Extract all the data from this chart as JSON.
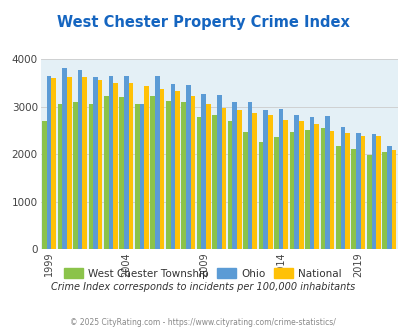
{
  "title": "West Chester Property Crime Index",
  "title_color": "#1565C0",
  "subtitle": "Crime Index corresponds to incidents per 100,000 inhabitants",
  "subtitle_color": "#333333",
  "footer": "© 2025 CityRating.com - https://www.cityrating.com/crime-statistics/",
  "footer_color": "#888888",
  "years": [
    1999,
    2000,
    2001,
    2002,
    2003,
    2004,
    2005,
    2006,
    2007,
    2008,
    2009,
    2010,
    2011,
    2012,
    2013,
    2014,
    2015,
    2016,
    2017,
    2018,
    2019,
    2020,
    2021
  ],
  "west_chester": [
    2700,
    3050,
    3100,
    3070,
    3220,
    3200,
    3050,
    3230,
    3130,
    3100,
    2780,
    2820,
    2700,
    2460,
    2250,
    2360,
    2460,
    2520,
    2560,
    2180,
    2110,
    1990,
    2050
  ],
  "ohio": [
    3650,
    3820,
    3770,
    3630,
    3640,
    3640,
    3060,
    3660,
    3480,
    3470,
    3280,
    3260,
    3110,
    3110,
    2940,
    2960,
    2820,
    2780,
    2800,
    2580,
    2450,
    2420,
    2180
  ],
  "national": [
    3600,
    3620,
    3620,
    3560,
    3500,
    3510,
    3440,
    3370,
    3330,
    3220,
    3050,
    2980,
    2940,
    2880,
    2820,
    2720,
    2710,
    2640,
    2500,
    2450,
    2380,
    2380,
    2090
  ],
  "wc_color": "#8BC34A",
  "ohio_color": "#5B9BD5",
  "national_color": "#FFC107",
  "plot_bg_color": "#E4F0F6",
  "ylim": [
    0,
    4000
  ],
  "yticks": [
    0,
    1000,
    2000,
    3000,
    4000
  ],
  "grid_color": "#CCCCCC",
  "legend_labels": [
    "West Chester Township",
    "Ohio",
    "National"
  ],
  "xlabel_ticks": [
    1999,
    2004,
    2009,
    2014,
    2019
  ]
}
